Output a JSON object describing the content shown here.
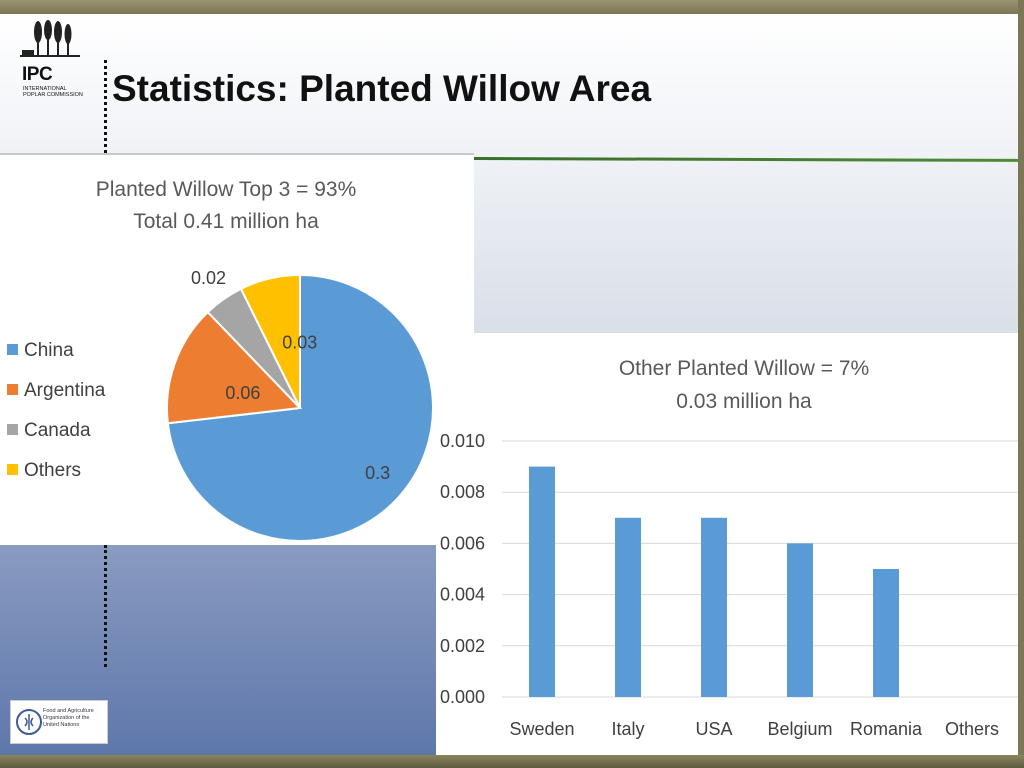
{
  "slide": {
    "title": "Statistics: Planted Willow Area",
    "logo_top": {
      "name": "IPC",
      "subtitle": "INTERNATIONAL POPLAR COMMISSION"
    },
    "logo_bottom": {
      "text": "Food and Agriculture Organization of the United Nations"
    }
  },
  "colors": {
    "china": "#5b9bd5",
    "argentina": "#ed7d31",
    "canada": "#a5a5a5",
    "others": "#ffc000",
    "bar": "#5b9bd5",
    "title_rule": "#3c6e2a"
  },
  "chart_data": [
    {
      "type": "pie",
      "title": "Planted Willow Top 3 = 93%",
      "subtitle": "Total 0.41 million ha",
      "legend_position": "left",
      "slices": [
        {
          "label": "China",
          "value": 0.3,
          "display": "0.3",
          "color": "#5b9bd5"
        },
        {
          "label": "Argentina",
          "value": 0.06,
          "display": "0.06",
          "color": "#ed7d31"
        },
        {
          "label": "Canada",
          "value": 0.02,
          "display": "0.02",
          "color": "#a5a5a5"
        },
        {
          "label": "Others",
          "value": 0.03,
          "display": "0.03",
          "color": "#ffc000"
        }
      ]
    },
    {
      "type": "bar",
      "title": "Other Planted Willow = 7%",
      "subtitle": "0.03 million ha",
      "categories": [
        "Sweden",
        "Italy",
        "USA",
        "Belgium",
        "Romania",
        "Others"
      ],
      "values": [
        0.009,
        0.007,
        0.007,
        0.006,
        0.005,
        0
      ],
      "ylim": [
        0,
        0.01
      ],
      "yticks": [
        "0.000",
        "0.002",
        "0.004",
        "0.006",
        "0.008",
        "0.010"
      ],
      "grid": true,
      "color": "#5b9bd5"
    }
  ]
}
